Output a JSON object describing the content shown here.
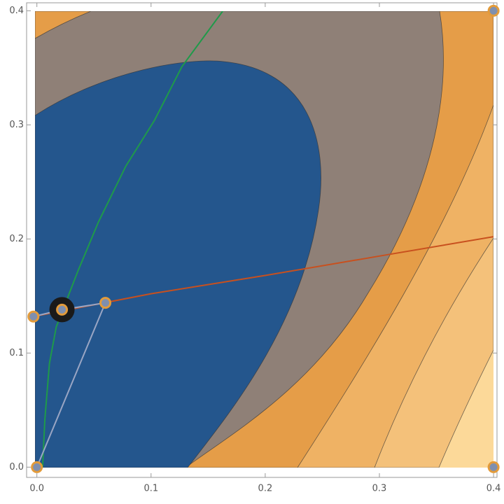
{
  "chart_data": {
    "type": "contour",
    "xlim": [
      -0.009,
      0.403
    ],
    "ylim": [
      -0.009,
      0.407
    ],
    "xticks": [
      {
        "value": 0,
        "label": "0.0"
      },
      0.1,
      0.2,
      0.3,
      0.4
    ],
    "yticks": [
      {
        "value": 0,
        "label": "0.0"
      },
      0.1,
      0.2,
      0.3,
      0.4
    ],
    "series": [
      {
        "color": "#1f9a4a",
        "x": [
          0.005,
          0.007,
          0.011,
          0.017,
          0.024,
          0.036,
          0.054,
          0.078,
          0.103,
          0.127,
          0.163
        ],
        "y": [
          0,
          0.042,
          0.091,
          0.123,
          0.141,
          0.172,
          0.215,
          0.264,
          0.304,
          0.351,
          0.4
        ]
      },
      {
        "color": "#c8501e",
        "x": [
          -0.003,
          0.1,
          0.2,
          0.3,
          0.4
        ],
        "y": [
          0.132,
          0.152,
          0.168,
          0.185,
          0.202
        ]
      },
      {
        "color": "#9aa6c4",
        "x": [
          0,
          0.06
        ],
        "y": [
          0,
          0.144
        ]
      },
      {
        "color": "#9aa6c4",
        "x": [
          -0.003,
          0.022,
          0.06
        ],
        "y": [
          0.132,
          0.138,
          0.144
        ]
      }
    ],
    "points": {
      "color": "#e39b3a",
      "x": [
        -0.003,
        0.022,
        0.06,
        0,
        0.4,
        0.4
      ],
      "y": [
        0.132,
        0.138,
        0.144,
        0,
        0.4,
        0
      ]
    },
    "highlight_point": {
      "color": "#1a1a1a",
      "x": 0.022,
      "y": 0.138
    }
  }
}
